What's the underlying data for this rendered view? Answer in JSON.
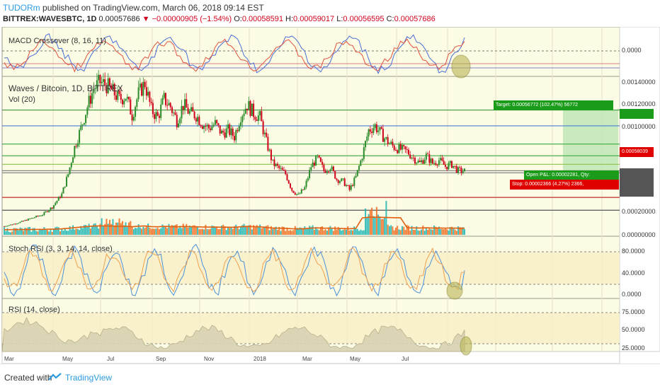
{
  "header": {
    "author": "TUDORm",
    "published_text": "published on TradingView.com, March 06, 2018 09:14 EST",
    "symbol": "BITTREX:WAVESBTC, 1D",
    "last": "0.00057686",
    "change_arrow": "▼",
    "change": "−0.00000905 (−1.54%)",
    "o_label": "O:",
    "o": "0.00058591",
    "h_label": "H:",
    "h": "0.00059017",
    "l_label": "L:",
    "l": "0.00056595",
    "c_label": "C:",
    "c": "0.00057686"
  },
  "panes": {
    "macd": {
      "label": "MACD Crossover (8, 16, 11)",
      "axis": [
        "0.0000"
      ]
    },
    "price": {
      "title": "Waves / Bitcoin, 1D, BITTREX",
      "vol_label": "Vol (20)",
      "axis": [
        "0.00140000",
        "0.00120000",
        "0.00100000",
        "0.00020000",
        "0.00000000"
      ],
      "target_label": "Target: 0.00056772 (102.47%) 56772",
      "entry_label": "0.00058039",
      "pnl_label": "Open P&L: 0.00002281, Qty:",
      "stop_label": "Stop: 0.00002366 (4.27%) 2366,"
    },
    "stoch": {
      "label": "Stoch RSI (3, 3, 14, 14, close)",
      "axis": [
        "80.0000",
        "40.0000",
        "0.0000"
      ]
    },
    "rsi": {
      "label": "RSI (14, close)",
      "axis": [
        "75.0000",
        "50.0000",
        "25.0000"
      ]
    }
  },
  "dates": [
    "Mar",
    "May",
    "Jul",
    "Sep",
    "Nov",
    "2018",
    "Mar",
    "May",
    "Jul"
  ],
  "footer": {
    "created_with": "Created with",
    "brand": "TradingView"
  },
  "colors": {
    "bg": "#fcfbe4",
    "up": "#2a8c2a",
    "down": "#d0021b",
    "blue_line": "#4a7fd6",
    "macd_line": "#4a6fd6",
    "signal_line": "#e0533f",
    "stoch_k": "#4a90d9",
    "stoch_d": "#f0a050",
    "rsi_fill": "#d8d2b4",
    "highlight": "#b9b655",
    "target_green": "#1a9c1a",
    "stop_red": "#e00000"
  },
  "chart_data": {
    "type": "candlestick",
    "title": "Waves / Bitcoin, 1D, BITTREX",
    "symbol": "BITTREX:WAVESBTC",
    "x_labels": [
      "Mar",
      "May",
      "Jul",
      "Sep",
      "Nov",
      "2018",
      "Mar",
      "May",
      "Jul"
    ],
    "price_path": [
      [
        0,
        6e-05
      ],
      [
        8,
        9e-05
      ],
      [
        16,
        0.00013
      ],
      [
        24,
        0.00017
      ],
      [
        30,
        0.00024
      ],
      [
        36,
        0.00036
      ],
      [
        40,
        0.00055
      ],
      [
        44,
        0.0008
      ],
      [
        48,
        0.00098
      ],
      [
        52,
        0.00118
      ],
      [
        56,
        0.00135
      ],
      [
        60,
        0.00141
      ],
      [
        64,
        0.00138
      ],
      [
        68,
        0.00132
      ],
      [
        72,
        0.00125
      ],
      [
        76,
        0.00128
      ],
      [
        80,
        0.0011
      ],
      [
        84,
        0.0013
      ],
      [
        88,
        0.0014
      ],
      [
        92,
        0.00115
      ],
      [
        96,
        0.00108
      ],
      [
        100,
        0.00125
      ],
      [
        104,
        0.00118
      ],
      [
        108,
        0.00105
      ],
      [
        112,
        0.0012
      ],
      [
        116,
        0.00112
      ],
      [
        120,
        0.0011
      ],
      [
        124,
        0.00102
      ],
      [
        128,
        0.00098
      ],
      [
        132,
        0.00102
      ],
      [
        136,
        0.00093
      ],
      [
        140,
        0.00096
      ],
      [
        144,
        0.0009
      ],
      [
        148,
        0.0011
      ],
      [
        152,
        0.0012
      ],
      [
        156,
        0.00112
      ],
      [
        160,
        0.00108
      ],
      [
        164,
        0.00085
      ],
      [
        168,
        0.00065
      ],
      [
        172,
        0.0006
      ],
      [
        176,
        0.00055
      ],
      [
        180,
        0.0004
      ],
      [
        184,
        0.00035
      ],
      [
        188,
        0.00042
      ],
      [
        192,
        0.00062
      ],
      [
        196,
        0.0007
      ],
      [
        200,
        0.00058
      ],
      [
        204,
        0.00062
      ],
      [
        208,
        0.0005
      ],
      [
        212,
        0.00048
      ],
      [
        216,
        0.0004
      ],
      [
        220,
        0.00052
      ],
      [
        224,
        0.00072
      ],
      [
        228,
        0.00096
      ],
      [
        232,
        0.001
      ],
      [
        236,
        0.00092
      ],
      [
        240,
        0.00085
      ],
      [
        244,
        0.0008
      ],
      [
        248,
        0.00078
      ],
      [
        252,
        0.00076
      ],
      [
        256,
        0.0007
      ],
      [
        260,
        0.00065
      ],
      [
        264,
        0.00072
      ],
      [
        268,
        0.00065
      ],
      [
        272,
        0.00068
      ],
      [
        276,
        0.00062
      ],
      [
        280,
        0.00064
      ],
      [
        284,
        0.00058
      ],
      [
        288,
        0.00057686
      ]
    ],
    "horizontal_levels": [
      {
        "price": 0.001,
        "color": "#4a7fd6"
      },
      {
        "price": 0.00083,
        "color": "#4caf50"
      },
      {
        "price": 0.00072,
        "color": "#4caf50"
      },
      {
        "price": 0.00064,
        "color": "#8bc34a"
      },
      {
        "price": 0.00058,
        "color": "#888888"
      },
      {
        "price": 0.00056,
        "color": "#888888"
      },
      {
        "price": 0.00033,
        "color": "#c62828"
      },
      {
        "price": 0.00021,
        "color": "#555555"
      }
    ],
    "long_position": {
      "entry": 0.00058039,
      "target": 0.00114811,
      "stop": 0.00055673
    }
  }
}
